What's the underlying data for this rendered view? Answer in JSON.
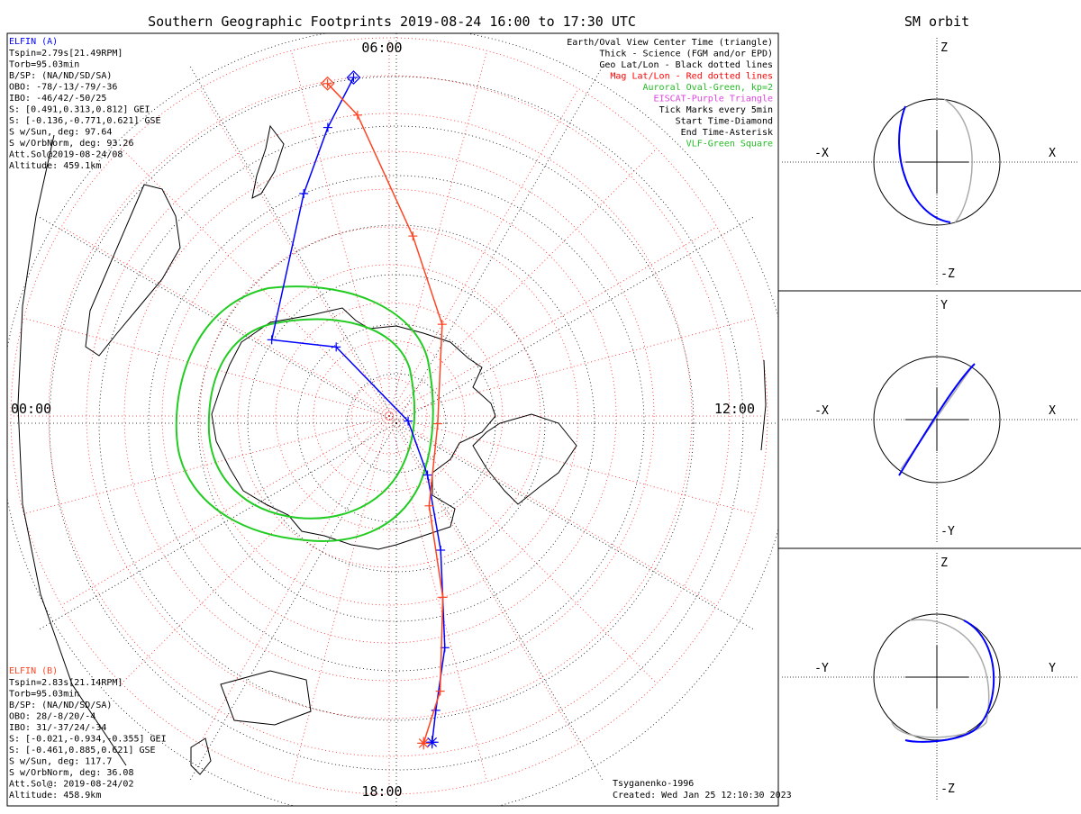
{
  "main_title": "Southern Geographic Footprints 2019-08-24 16:00 to 17:30 UTC",
  "right_title": "SM orbit",
  "map": {
    "mlt_labels": {
      "top": "06:00",
      "left": "00:00",
      "right": "12:00",
      "bottom": "18:00"
    }
  },
  "legend": [
    {
      "text": "Earth/Oval View Center Time (triangle)",
      "color": "#000000"
    },
    {
      "text": "Thick - Science (FGM and/or EPD)",
      "color": "#000000"
    },
    {
      "text": "Geo Lat/Lon - Black dotted lines",
      "color": "#000000"
    },
    {
      "text": "Mag Lat/Lon - Red dotted lines",
      "color": "#ff0000"
    },
    {
      "text": "Auroral Oval-Green, kp=2",
      "color": "#22bb22"
    },
    {
      "text": "EISCAT-Purple Triangle",
      "color": "#dd44dd"
    },
    {
      "text": "Tick Marks every 5min",
      "color": "#000000"
    },
    {
      "text": "Start Time-Diamond",
      "color": "#000000"
    },
    {
      "text": "End Time-Asterisk",
      "color": "#000000"
    },
    {
      "text": "VLF-Green Square",
      "color": "#22bb22"
    }
  ],
  "elfin_a": {
    "name": "ELFIN (A)",
    "color": "#0000ff",
    "lines": [
      "Tspin=2.79s[21.49RPM]",
      "Torb=95.03min",
      "B/SP: (NA/ND/SD/SA)",
      "OBO: -78/-13/-79/-36",
      "IBO: -46/42/-50/25",
      "S: [0.491,0.313,0.812] GEI",
      "S: [-0.136,-0.771,0.621] GSE",
      "S w/Sun, deg: 97.64",
      "S w/OrbNorm, deg: 93.26",
      "Att.Sol@2019-08-24/08",
      "Altitude: 459.1km"
    ]
  },
  "elfin_b": {
    "name": "ELFIN (B)",
    "color": "#ff4422",
    "lines": [
      "Tspin=2.83s[21.14RPM]",
      "Torb=95.03min",
      "B/SP: (NA/ND/SD/SA)",
      "OBO: 28/-8/20/-4",
      "IBO: 31/-37/24/-34",
      "S: [-0.021,-0.934,-0.355] GEI",
      "S: [-0.461,0.885,0.621] GSE",
      "S w/Sun, deg: 117.7",
      "S w/OrbNorm, deg: 36.08",
      "Att.Sol@: 2019-08-24/02",
      "Altitude: 458.9km"
    ]
  },
  "credits": {
    "model": "Tsyganenko-1996",
    "created": "Created: Wed Jan 25 12:10:30 2023"
  },
  "panels": [
    {
      "id": "xz",
      "up": "Z",
      "down": "-Z",
      "left": "-X",
      "right": "X"
    },
    {
      "id": "xy",
      "up": "Y",
      "down": "-Y",
      "left": "-X",
      "right": "X"
    },
    {
      "id": "yz",
      "up": "Z",
      "down": "-Z",
      "left": "-Y",
      "right": "Y"
    }
  ],
  "chart_data": {
    "type": "scatter",
    "title": "Southern Geographic Footprints 2019-08-24 16:00 to 17:30 UTC",
    "coordinates": "polar",
    "mlt_axis_labels": [
      "00:00",
      "06:00",
      "12:00",
      "18:00"
    ],
    "series": [
      {
        "name": "ELFIN (A)",
        "color": "#0000ff",
        "footprint": [
          {
            "mlt": 5.6,
            "mlat": -45.0
          },
          {
            "mlt": 5.2,
            "mlat": -51.0
          },
          {
            "mlt": 4.6,
            "mlat": -58.5
          },
          {
            "mlt": 2.2,
            "mlat": -71.5
          },
          {
            "mlt": 3.5,
            "mlat": -78.5
          },
          {
            "mlt": 13.0,
            "mlat": -87.4
          },
          {
            "mlt": 15.8,
            "mlat": -80.7
          },
          {
            "mlt": 16.6,
            "mlat": -71.0
          },
          {
            "mlt": 17.1,
            "mlat": -58.5
          },
          {
            "mlt": 17.4,
            "mlat": -50.6
          },
          {
            "mlt": 17.5,
            "mlat": -46.5
          }
        ]
      },
      {
        "name": "ELFIN (B)",
        "color": "#ff4422",
        "footprint": [
          {
            "mlt": 5.3,
            "mlat": -45.3
          },
          {
            "mlt": 5.6,
            "mlat": -50.0
          },
          {
            "mlt": 6.5,
            "mlat": -66.0
          },
          {
            "mlt": 8.0,
            "mlat": -76.0
          },
          {
            "mlt": 12.6,
            "mlat": -83.5
          },
          {
            "mlt": 16.4,
            "mlat": -77.0
          },
          {
            "mlt": 16.9,
            "mlat": -65.0
          },
          {
            "mlt": 17.3,
            "mlat": -53.0
          },
          {
            "mlt": 17.6,
            "mlat": -46.5
          }
        ]
      }
    ],
    "auroral_oval": {
      "kp": 2,
      "color": "#22bb22"
    }
  }
}
